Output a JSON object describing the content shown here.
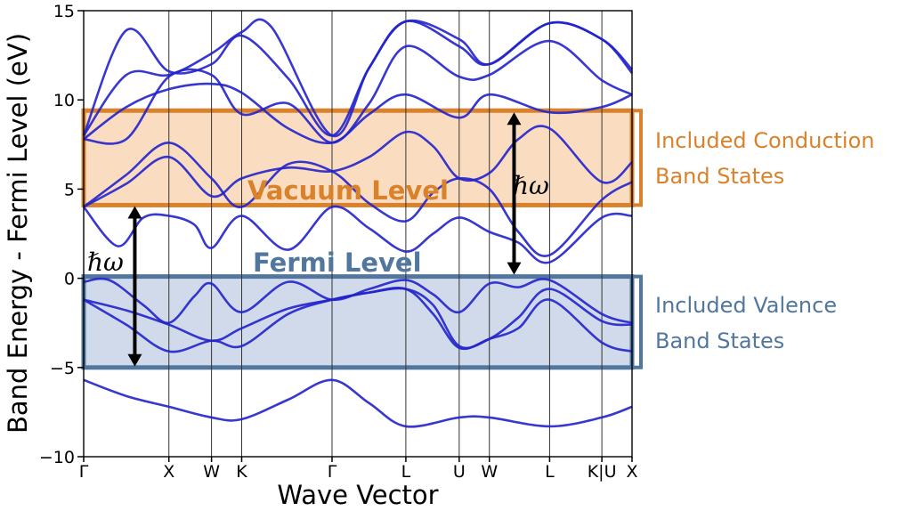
{
  "chart_data": {
    "type": "line",
    "title": "",
    "xlabel": "Wave Vector",
    "ylabel": "Band Energy - Fermi Level (eV)",
    "ylim": [
      -10,
      15
    ],
    "yticks": [
      -10,
      -5,
      0,
      5,
      10,
      15
    ],
    "xticks": [
      {
        "label": "Γ",
        "k": 0.0
      },
      {
        "label": "X",
        "k": 1.0
      },
      {
        "label": "W",
        "k": 1.5
      },
      {
        "label": "K",
        "k": 1.854
      },
      {
        "label": "Γ",
        "k": 2.914
      },
      {
        "label": "L",
        "k": 3.78
      },
      {
        "label": "U",
        "k": 4.406
      },
      {
        "label": "W",
        "k": 4.76
      },
      {
        "label": "L",
        "k": 5.467
      },
      {
        "label": "K|U",
        "k": 6.08
      },
      {
        "label": "X",
        "k": 6.434
      }
    ],
    "xlim": [
      0,
      6.434
    ],
    "line_color": "#2222cc",
    "series": [
      {
        "values": [
          [
            0,
            -5.7
          ],
          [
            0.5,
            -6.6
          ],
          [
            1.0,
            -7.2
          ],
          [
            1.5,
            -7.8
          ],
          [
            1.854,
            -7.9
          ],
          [
            2.4,
            -6.8
          ],
          [
            2.914,
            -5.7
          ],
          [
            3.35,
            -7.0
          ],
          [
            3.78,
            -8.3
          ],
          [
            4.406,
            -7.8
          ],
          [
            4.76,
            -7.8
          ],
          [
            5.467,
            -8.3
          ],
          [
            6.08,
            -7.8
          ],
          [
            6.434,
            -7.2
          ]
        ]
      },
      {
        "values": [
          [
            0,
            -0.2
          ],
          [
            0.3,
            -0.1
          ],
          [
            0.7,
            -1.5
          ],
          [
            1.0,
            -2.5
          ],
          [
            1.3,
            -1.0
          ],
          [
            1.5,
            -0.3
          ],
          [
            1.854,
            -1.9
          ],
          [
            2.4,
            -0.2
          ],
          [
            2.914,
            -1.2
          ],
          [
            3.35,
            -0.6
          ],
          [
            3.78,
            -0.1
          ],
          [
            4.1,
            -0.9
          ],
          [
            4.406,
            -1.9
          ],
          [
            4.76,
            -0.3
          ],
          [
            5.1,
            -0.5
          ],
          [
            5.467,
            -0.1
          ],
          [
            6.08,
            -2.0
          ],
          [
            6.434,
            -2.5
          ]
        ]
      },
      {
        "values": [
          [
            0,
            -1.2
          ],
          [
            0.5,
            -1.8
          ],
          [
            1.0,
            -2.6
          ],
          [
            1.5,
            -3.5
          ],
          [
            1.854,
            -2.8
          ],
          [
            2.4,
            -1.7
          ],
          [
            2.914,
            -1.2
          ],
          [
            3.35,
            -0.8
          ],
          [
            3.78,
            -0.6
          ],
          [
            4.1,
            -1.5
          ],
          [
            4.406,
            -3.8
          ],
          [
            4.76,
            -3.4
          ],
          [
            5.1,
            -2.2
          ],
          [
            5.467,
            -0.6
          ],
          [
            6.08,
            -2.4
          ],
          [
            6.434,
            -2.6
          ]
        ]
      },
      {
        "values": [
          [
            0,
            -1.2
          ],
          [
            0.5,
            -2.6
          ],
          [
            1.0,
            -4.1
          ],
          [
            1.5,
            -3.5
          ],
          [
            1.854,
            -3.8
          ],
          [
            2.4,
            -2.0
          ],
          [
            2.914,
            -1.2
          ],
          [
            3.35,
            -0.8
          ],
          [
            3.78,
            -0.6
          ],
          [
            4.1,
            -2.0
          ],
          [
            4.406,
            -3.9
          ],
          [
            4.76,
            -3.4
          ],
          [
            5.1,
            -2.8
          ],
          [
            5.467,
            -1.2
          ],
          [
            6.08,
            -3.6
          ],
          [
            6.434,
            -4.1
          ]
        ]
      },
      {
        "values": [
          [
            0,
            4.0
          ],
          [
            0.4,
            1.8
          ],
          [
            0.7,
            3.4
          ],
          [
            1.0,
            3.5
          ],
          [
            1.3,
            3.0
          ],
          [
            1.5,
            1.7
          ],
          [
            1.854,
            3.5
          ],
          [
            2.4,
            1.6
          ],
          [
            2.914,
            4.0
          ],
          [
            3.35,
            2.8
          ],
          [
            3.78,
            1.5
          ],
          [
            4.1,
            2.5
          ],
          [
            4.406,
            3.4
          ],
          [
            4.76,
            2.6
          ],
          [
            5.1,
            2.0
          ],
          [
            5.467,
            0.9
          ],
          [
            6.08,
            3.4
          ],
          [
            6.434,
            3.5
          ]
        ]
      },
      {
        "values": [
          [
            0,
            4.0
          ],
          [
            0.5,
            5.8
          ],
          [
            1.0,
            7.6
          ],
          [
            1.5,
            5.6
          ],
          [
            1.854,
            4.0
          ],
          [
            2.4,
            6.4
          ],
          [
            2.914,
            6.0
          ],
          [
            3.35,
            4.2
          ],
          [
            3.78,
            3.2
          ],
          [
            4.1,
            4.8
          ],
          [
            4.406,
            5.6
          ],
          [
            4.76,
            5.0
          ],
          [
            5.1,
            2.6
          ],
          [
            5.467,
            1.3
          ],
          [
            6.08,
            4.4
          ],
          [
            6.434,
            5.4
          ]
        ]
      },
      {
        "values": [
          [
            0,
            4.0
          ],
          [
            0.5,
            5.3
          ],
          [
            1.0,
            6.8
          ],
          [
            1.5,
            4.6
          ],
          [
            1.854,
            5.6
          ],
          [
            2.4,
            6.2
          ],
          [
            2.914,
            6.0
          ],
          [
            3.35,
            6.8
          ],
          [
            3.78,
            8.2
          ],
          [
            4.1,
            7.4
          ],
          [
            4.406,
            5.6
          ],
          [
            4.76,
            5.9
          ],
          [
            5.1,
            7.8
          ],
          [
            5.467,
            8.4
          ],
          [
            6.08,
            5.4
          ],
          [
            6.434,
            6.5
          ]
        ]
      },
      {
        "values": [
          [
            0,
            7.8
          ],
          [
            0.5,
            7.8
          ],
          [
            1.0,
            11.3
          ],
          [
            1.5,
            11.4
          ],
          [
            1.854,
            9.2
          ],
          [
            2.4,
            9.8
          ],
          [
            2.914,
            7.6
          ],
          [
            3.35,
            9.8
          ],
          [
            3.78,
            13.0
          ],
          [
            4.406,
            11.3
          ],
          [
            4.76,
            11.4
          ],
          [
            5.467,
            13.3
          ],
          [
            6.08,
            11.1
          ],
          [
            6.434,
            10.3
          ]
        ]
      },
      {
        "values": [
          [
            0,
            7.8
          ],
          [
            0.5,
            9.6
          ],
          [
            1.0,
            10.6
          ],
          [
            1.5,
            10.9
          ],
          [
            1.854,
            10.4
          ],
          [
            2.4,
            8.4
          ],
          [
            2.914,
            7.6
          ],
          [
            3.35,
            9.2
          ],
          [
            3.78,
            10.3
          ],
          [
            4.406,
            9.0
          ],
          [
            4.76,
            10.3
          ],
          [
            5.467,
            9.3
          ],
          [
            6.08,
            9.6
          ],
          [
            6.434,
            10.3
          ]
        ]
      },
      {
        "values": [
          [
            0,
            8.0
          ],
          [
            0.5,
            13.9
          ],
          [
            1.0,
            11.6
          ],
          [
            1.5,
            12.0
          ],
          [
            1.854,
            13.6
          ],
          [
            2.4,
            11.2
          ],
          [
            2.914,
            8.0
          ],
          [
            3.35,
            11.8
          ],
          [
            3.78,
            14.4
          ],
          [
            4.406,
            13.0
          ],
          [
            4.76,
            12.0
          ],
          [
            5.467,
            14.3
          ],
          [
            6.08,
            13.4
          ],
          [
            6.434,
            11.5
          ]
        ]
      },
      {
        "values": [
          [
            0,
            8.0
          ],
          [
            0.5,
            11.4
          ],
          [
            1.0,
            11.4
          ],
          [
            1.5,
            12.6
          ],
          [
            1.854,
            13.8
          ],
          [
            2.2,
            14.1
          ],
          [
            2.914,
            8.0
          ],
          [
            3.35,
            11.8
          ],
          [
            3.78,
            14.4
          ],
          [
            4.406,
            13.4
          ],
          [
            4.76,
            12.0
          ],
          [
            5.467,
            14.3
          ],
          [
            6.08,
            13.4
          ],
          [
            6.434,
            11.7
          ]
        ]
      }
    ]
  },
  "bands": {
    "conduction": {
      "from": 4.1,
      "to": 9.4,
      "fill": "#f9d7b6",
      "stroke": "#d9822b"
    },
    "valence": {
      "from": -5.0,
      "to": 0.1,
      "fill": "#c8d3e6",
      "stroke": "#52779e"
    }
  },
  "arrows": [
    {
      "k": 0.6,
      "from": -4.95,
      "to": 4.05
    },
    {
      "k": 5.05,
      "from": 0.2,
      "to": 9.3
    }
  ],
  "annotations": {
    "vacuum_level": "Vacuum Level",
    "fermi_level": "Fermi Level",
    "conduction_line1": "Included Conduction",
    "conduction_line2": "Band States",
    "valence_line1": "Included Valence",
    "valence_line2": "Band States",
    "hbar_omega": "ℏω"
  },
  "colors": {
    "conduction_text": "#d9822b",
    "valence_text": "#52779e",
    "line": "#2222cc"
  }
}
